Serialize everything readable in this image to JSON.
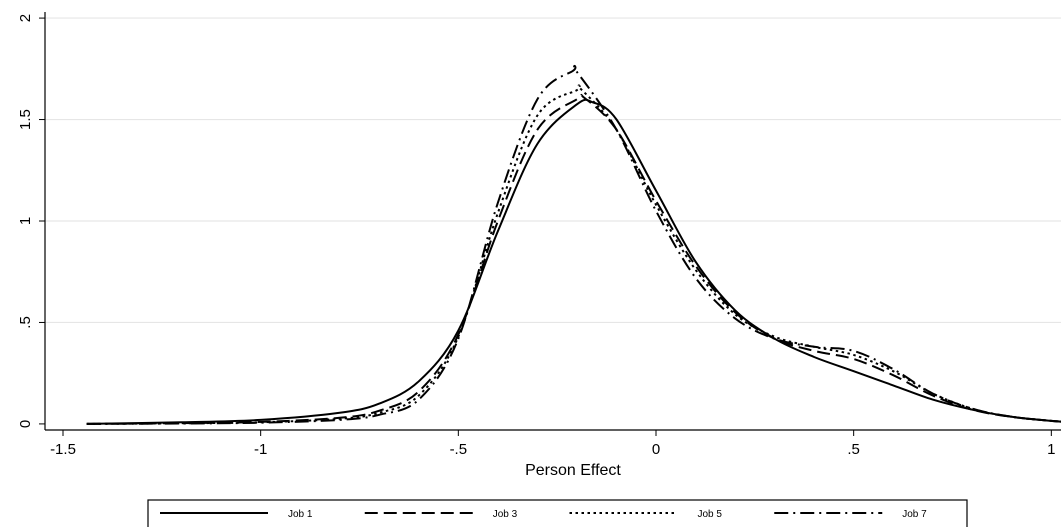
{
  "chart_data": {
    "type": "line",
    "title": "",
    "xlabel": "Person Effect",
    "ylabel": "",
    "xlim": [
      -1.5,
      1.07
    ],
    "ylim": [
      -0.03,
      2.03
    ],
    "x_ticks": [
      -1.5,
      -1,
      -0.5,
      0,
      0.5,
      1
    ],
    "x_tick_labels": [
      "-1.5",
      "-1",
      "-.5",
      "0",
      ".5",
      "1"
    ],
    "y_ticks": [
      0,
      0.5,
      1,
      1.5,
      2
    ],
    "y_tick_labels": [
      "0",
      ".5",
      "1",
      "1.5",
      "2"
    ],
    "grid": "horizontal",
    "legend_position": "bottom",
    "series": [
      {
        "name": "Job 1",
        "dash": "solid",
        "x": [
          -1.44,
          -1.2,
          -1.0,
          -0.8,
          -0.7,
          -0.6,
          -0.5,
          -0.4,
          -0.3,
          -0.2,
          -0.16,
          -0.1,
          0.0,
          0.1,
          0.2,
          0.3,
          0.4,
          0.5,
          0.6,
          0.7,
          0.8,
          0.9,
          1.0,
          1.04
        ],
        "y": [
          0.0,
          0.008,
          0.02,
          0.055,
          0.1,
          0.21,
          0.46,
          0.95,
          1.38,
          1.575,
          1.585,
          1.5,
          1.15,
          0.8,
          0.56,
          0.42,
          0.33,
          0.26,
          0.19,
          0.12,
          0.07,
          0.035,
          0.015,
          0.01
        ]
      },
      {
        "name": "Job 3",
        "dash": "dashed",
        "x": [
          -1.44,
          -1.2,
          -1.0,
          -0.8,
          -0.7,
          -0.6,
          -0.5,
          -0.4,
          -0.3,
          -0.2,
          -0.18,
          -0.1,
          0.0,
          0.1,
          0.2,
          0.3,
          0.4,
          0.5,
          0.6,
          0.7,
          0.8,
          0.9,
          1.0,
          1.04
        ],
        "y": [
          0.0,
          0.004,
          0.01,
          0.03,
          0.065,
          0.16,
          0.44,
          1.0,
          1.45,
          1.6,
          1.605,
          1.45,
          1.1,
          0.78,
          0.55,
          0.42,
          0.36,
          0.32,
          0.24,
          0.14,
          0.07,
          0.035,
          0.015,
          0.01
        ]
      },
      {
        "name": "Job 5",
        "dash": "dotted",
        "x": [
          -1.44,
          -1.2,
          -1.0,
          -0.8,
          -0.7,
          -0.6,
          -0.5,
          -0.4,
          -0.3,
          -0.2,
          -0.19,
          -0.1,
          0.0,
          0.1,
          0.2,
          0.3,
          0.4,
          0.5,
          0.6,
          0.7,
          0.8,
          0.9,
          1.0,
          1.04
        ],
        "y": [
          0.0,
          0.003,
          0.008,
          0.025,
          0.055,
          0.14,
          0.43,
          1.04,
          1.52,
          1.645,
          1.65,
          1.45,
          1.08,
          0.76,
          0.54,
          0.43,
          0.38,
          0.34,
          0.26,
          0.15,
          0.075,
          0.035,
          0.015,
          0.01
        ]
      },
      {
        "name": "Job 7",
        "dash": "dashdot",
        "x": [
          -1.44,
          -1.2,
          -1.0,
          -0.8,
          -0.7,
          -0.6,
          -0.5,
          -0.4,
          -0.3,
          -0.21,
          -0.2,
          -0.1,
          0.0,
          0.1,
          0.2,
          0.3,
          0.4,
          0.5,
          0.6,
          0.7,
          0.8,
          0.9,
          1.0,
          1.04
        ],
        "y": [
          0.0,
          0.002,
          0.006,
          0.02,
          0.045,
          0.12,
          0.42,
          1.09,
          1.6,
          1.74,
          1.735,
          1.45,
          1.05,
          0.72,
          0.52,
          0.42,
          0.38,
          0.36,
          0.27,
          0.15,
          0.075,
          0.035,
          0.015,
          0.01
        ]
      }
    ]
  }
}
